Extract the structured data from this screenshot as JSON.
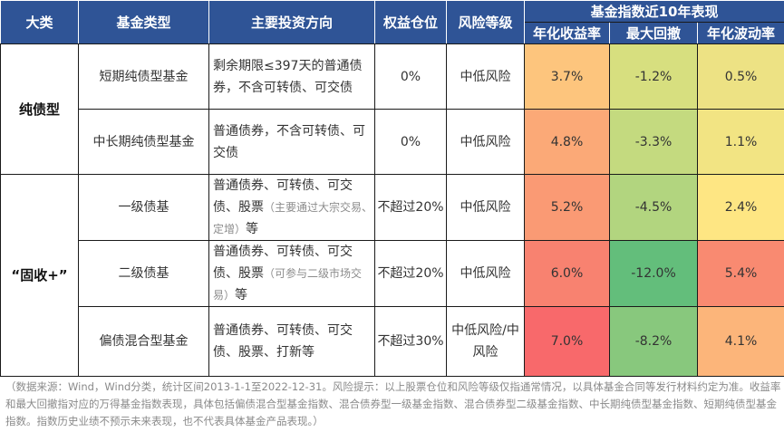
{
  "table": {
    "headers": {
      "category": "大类",
      "fund_type": "基金类型",
      "direction": "主要投资方向",
      "equity": "权益仓位",
      "risk": "风险等级",
      "perf_group": "基金指数近10年表现",
      "annual_return": "年化收益率",
      "max_drawdown": "最大回撤",
      "annual_vol": "年化波动率"
    },
    "categories": [
      {
        "label": "纯债型"
      },
      {
        "label": "“固收+”"
      }
    ],
    "rows": [
      {
        "fund_type": "短期纯债型基金",
        "direction": "剩余期限≤397天的普通债券，不含可转债、可交债",
        "direction_note": "",
        "direction_tail": "",
        "equity": "0%",
        "risk": "中低风险",
        "annual_return": "3.7%",
        "max_drawdown": "-1.2%",
        "annual_vol": "0.5%",
        "colors": {
          "annual_return": "#fdc57d",
          "max_drawdown": "#d7df7f",
          "annual_vol": "#ede284"
        }
      },
      {
        "fund_type": "中长期纯债型基金",
        "direction": "普通债券，不含可转债、可交债",
        "direction_note": "",
        "direction_tail": "",
        "equity": "0%",
        "risk": "中低风险",
        "annual_return": "4.8%",
        "max_drawdown": "-3.3%",
        "annual_vol": "1.1%",
        "colors": {
          "annual_return": "#fba977",
          "max_drawdown": "#c4da7f",
          "annual_vol": "#f2e483"
        }
      },
      {
        "fund_type": "一级债基",
        "direction": "普通债券、可转债、可交债、股票",
        "direction_note": "（主要通过大宗交易、定增）",
        "direction_tail": "等",
        "equity": "不超过20%",
        "risk": "中低风险",
        "annual_return": "5.2%",
        "max_drawdown": "-4.5%",
        "annual_vol": "2.4%",
        "colors": {
          "annual_return": "#fa9a74",
          "max_drawdown": "#b2d57f",
          "annual_vol": "#fee683"
        }
      },
      {
        "fund_type": "二级债基",
        "direction": "普通债券、可转债、可交债、股票",
        "direction_note": "（可参与二级市场交易）",
        "direction_tail": "等",
        "equity": "不超过20%",
        "risk": "中低风险",
        "annual_return": "6.0%",
        "max_drawdown": "-12.0%",
        "annual_vol": "5.4%",
        "colors": {
          "annual_return": "#f88270",
          "max_drawdown": "#63be7b",
          "annual_vol": "#f98a71"
        }
      },
      {
        "fund_type": "偏债混合型基金",
        "direction": "普通债券、可转债、可交债、股票、打新等",
        "direction_note": "",
        "direction_tail": "",
        "equity": "不超过30%",
        "risk": "中低风险/中风险",
        "annual_return": "7.0%",
        "max_drawdown": "-8.2%",
        "annual_vol": "4.1%",
        "colors": {
          "annual_return": "#f8696b",
          "max_drawdown": "#88c87d",
          "annual_vol": "#fcb57a"
        }
      }
    ]
  },
  "footnote": "（数据来源：Wind，Wind分类，统计区间2013-1-1至2022-12-31。风险提示：以上股票仓位和风险等级仅指通常情况，以具体基金合同等发行材料约定为准。收益率和最大回撤指对应的万得基金指数表现，具体包括偏债混合型基金指数、混合债券型一级基金指数、混合债券型二级基金指数、中长期纯债型基金指数、短期纯债型基金指数。指数历史业绩不预示未来表现，也不代表具体基金产品表现。）"
}
